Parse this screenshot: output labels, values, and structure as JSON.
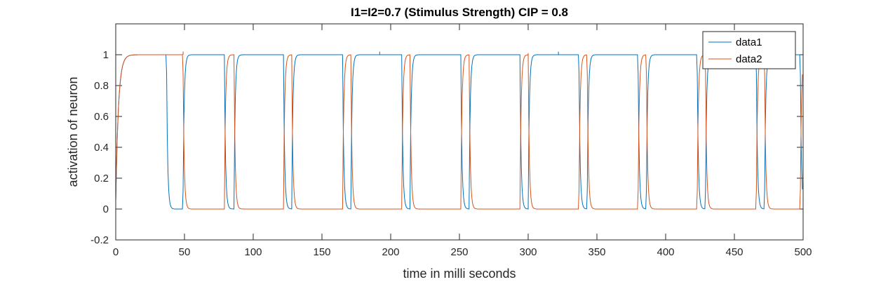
{
  "chart_data": {
    "type": "line",
    "title": "I1=I2=0.7 (Stimulus Strength) CIP = 0.8",
    "xlabel": "time in milli seconds",
    "ylabel": "activation of neuron",
    "xlim": [
      0,
      500
    ],
    "ylim": [
      -0.2,
      1.2
    ],
    "xticks": [
      "0",
      "50",
      "100",
      "150",
      "200",
      "250",
      "300",
      "350",
      "400",
      "450",
      "500"
    ],
    "yticks": [
      "-0.2",
      "0",
      "0.2",
      "0.4",
      "0.6",
      "0.8",
      "1"
    ],
    "grid": false,
    "legend_position": "top-right",
    "series": [
      {
        "name": "data1",
        "color": "#0072BD",
        "low": 0,
        "high": 1,
        "falls": [
          37,
          79,
          122,
          165,
          208,
          251,
          294,
          337,
          380,
          423,
          466,
          498
        ],
        "rises": [
          49,
          67,
          86,
          106,
          128,
          149,
          171,
          192,
          214,
          235,
          257,
          278,
          300,
          322,
          343,
          365,
          386,
          408,
          429,
          451,
          472,
          494
        ],
        "spikes": [
          [
            49,
            1.02
          ],
          [
            192,
            1.02
          ],
          [
            322,
            1.02
          ],
          [
            494,
            1.02
          ]
        ]
      },
      {
        "name": "data2",
        "color": "#D95319",
        "low": 0,
        "high": 1,
        "falls": [
          49,
          86,
          128,
          171,
          214,
          257,
          300,
          343,
          386,
          429,
          472
        ],
        "rises": [
          37,
          79,
          122,
          165,
          208,
          251,
          294,
          337,
          380,
          423,
          466,
          498
        ],
        "spikes": [
          [
            49,
            1.02
          ],
          [
            300,
            1.01
          ]
        ]
      }
    ]
  }
}
